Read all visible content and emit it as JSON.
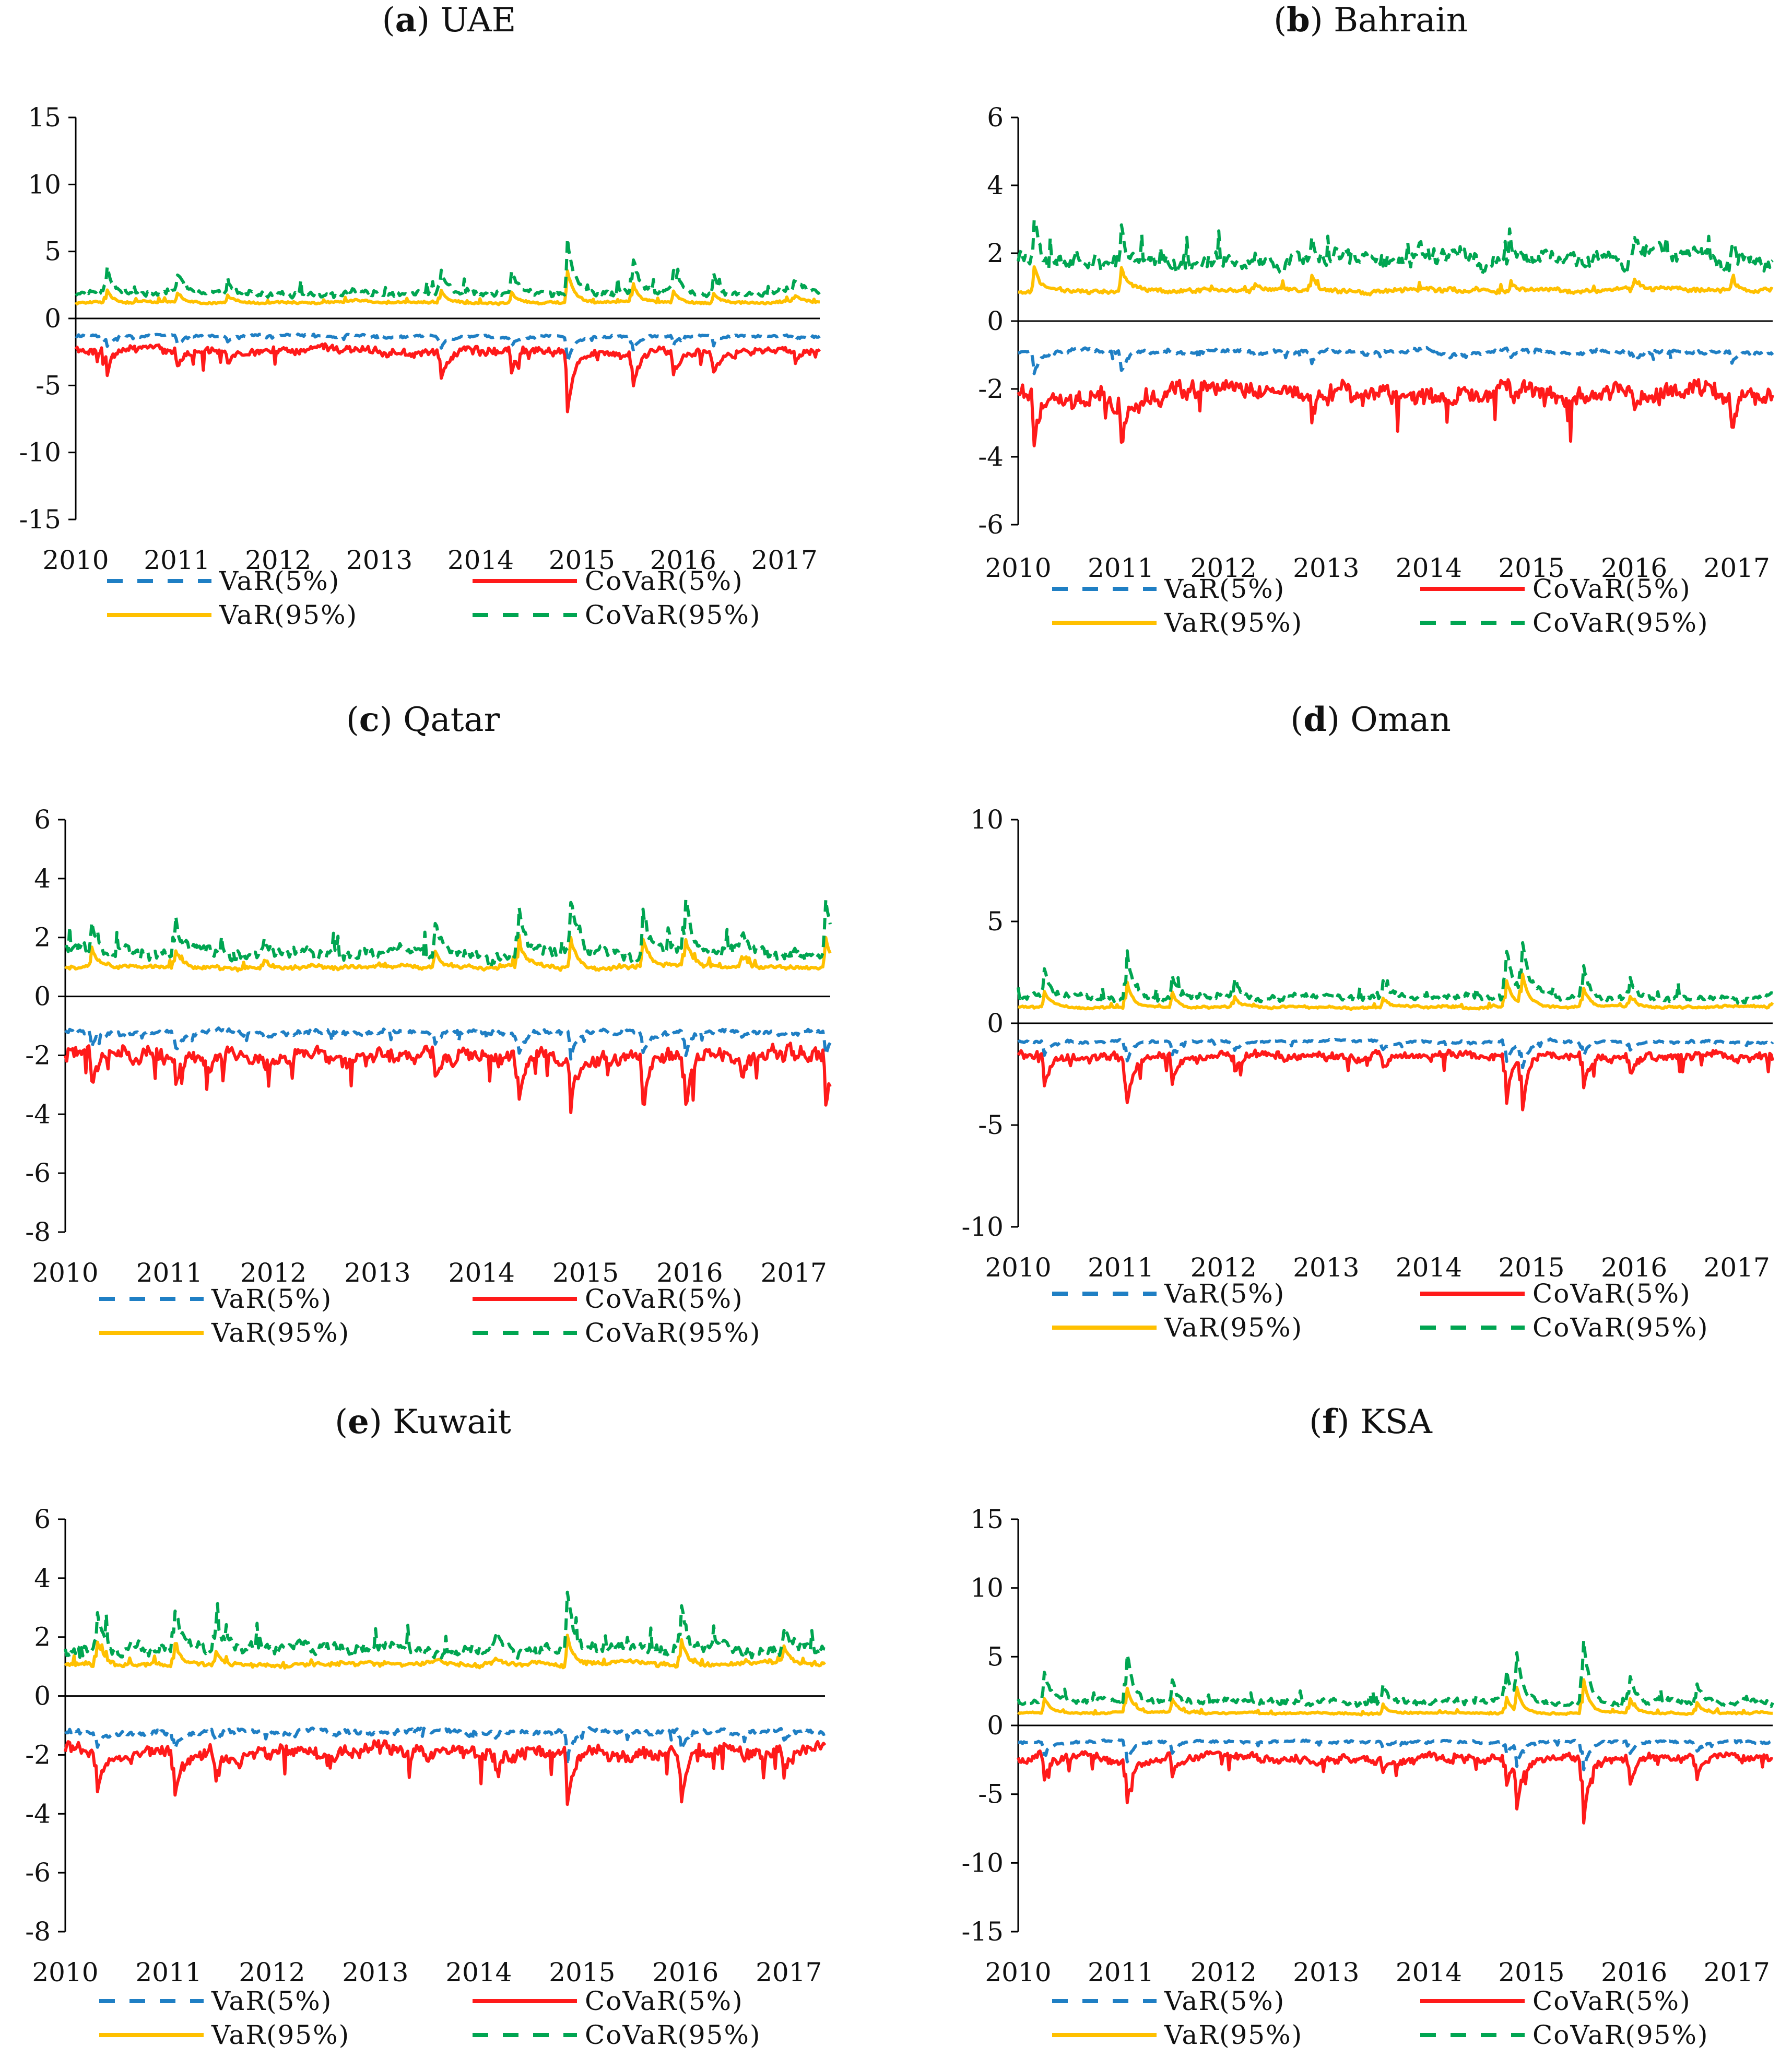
{
  "chart_data": [
    {
      "type": "line",
      "letter": "a",
      "country": "UAE",
      "ylim": [
        -15,
        15
      ],
      "yticks": [
        15,
        10,
        5,
        0,
        -5,
        -10,
        -15
      ],
      "xlim": [
        2010,
        2017.35
      ],
      "xticks": [
        2010,
        2011,
        2012,
        2013,
        2014,
        2015,
        2016,
        2017
      ],
      "baselines": {
        "var95": 1.2,
        "covar95": 1.9,
        "var5": -1.3,
        "covar5": -2.4
      },
      "spikes": [
        [
          2010.3,
          2.3
        ],
        [
          2011.0,
          1.4
        ],
        [
          2011.5,
          1.0
        ],
        [
          2013.6,
          2.0
        ],
        [
          2014.3,
          1.6
        ],
        [
          2014.85,
          4.8
        ],
        [
          2015.5,
          2.8
        ],
        [
          2015.9,
          1.6
        ],
        [
          2016.3,
          1.3
        ],
        [
          2017.1,
          0.9
        ]
      ],
      "legend": [
        {
          "key": "var5",
          "label": "VaR(5%)",
          "color": "#1f7fc4",
          "dash": true
        },
        {
          "key": "covar5",
          "label": "CoVaR(5%)",
          "color": "#ff1a1a",
          "dash": false
        },
        {
          "key": "var95",
          "label": "VaR(95%)",
          "color": "#ffc000",
          "dash": false
        },
        {
          "key": "covar95",
          "label": "CoVaR(95%)",
          "color": "#00a551",
          "dash": true
        }
      ]
    },
    {
      "type": "line",
      "letter": "b",
      "country": "Bahrain",
      "ylim": [
        -6,
        6
      ],
      "yticks": [
        6,
        4,
        2,
        0,
        -2,
        -4,
        -6
      ],
      "xlim": [
        2010,
        2017.35
      ],
      "xticks": [
        2010,
        2011,
        2012,
        2013,
        2014,
        2015,
        2016,
        2017
      ],
      "baselines": {
        "var95": 0.9,
        "covar95": 1.8,
        "var5": -0.9,
        "covar5": -2.1
      },
      "spikes": [
        [
          2010.15,
          1.5
        ],
        [
          2011.0,
          1.4
        ],
        [
          2012.3,
          0.4
        ],
        [
          2012.85,
          0.8
        ],
        [
          2014.2,
          0.3
        ],
        [
          2014.8,
          0.5
        ],
        [
          2016.0,
          0.6
        ],
        [
          2016.95,
          0.7
        ]
      ],
      "legend": [
        {
          "key": "var5",
          "label": "VaR(5%)",
          "color": "#1f7fc4",
          "dash": true
        },
        {
          "key": "covar5",
          "label": "CoVaR(5%)",
          "color": "#ff1a1a",
          "dash": false
        },
        {
          "key": "var95",
          "label": "VaR(95%)",
          "color": "#ffc000",
          "dash": false
        },
        {
          "key": "covar95",
          "label": "CoVaR(95%)",
          "color": "#00a551",
          "dash": true
        }
      ]
    },
    {
      "type": "line",
      "letter": "c",
      "country": "Qatar",
      "ylim": [
        -8,
        6
      ],
      "yticks": [
        6,
        4,
        2,
        0,
        -2,
        -4,
        -6,
        -8
      ],
      "xlim": [
        2010,
        2017.35
      ],
      "xticks": [
        2010,
        2011,
        2012,
        2013,
        2014,
        2015,
        2016,
        2017
      ],
      "baselines": {
        "var95": 1.0,
        "covar95": 1.5,
        "var5": -1.2,
        "covar5": -2.0
      },
      "spikes": [
        [
          2010.25,
          1.2
        ],
        [
          2011.05,
          1.3
        ],
        [
          2011.9,
          0.5
        ],
        [
          2013.55,
          1.0
        ],
        [
          2014.35,
          1.8
        ],
        [
          2014.85,
          2.0
        ],
        [
          2015.55,
          1.6
        ],
        [
          2015.95,
          2.1
        ],
        [
          2016.5,
          0.6
        ],
        [
          2017.3,
          2.0
        ]
      ],
      "legend": [
        {
          "key": "var5",
          "label": "VaR(5%)",
          "color": "#1f7fc4",
          "dash": true
        },
        {
          "key": "covar5",
          "label": "CoVaR(5%)",
          "color": "#ff1a1a",
          "dash": false
        },
        {
          "key": "var95",
          "label": "VaR(95%)",
          "color": "#ffc000",
          "dash": false
        },
        {
          "key": "covar95",
          "label": "CoVaR(95%)",
          "color": "#00a551",
          "dash": true
        }
      ]
    },
    {
      "type": "line",
      "letter": "d",
      "country": "Oman",
      "ylim": [
        -10,
        10
      ],
      "yticks": [
        10,
        5,
        0,
        -5,
        -10
      ],
      "xlim": [
        2010,
        2017.35
      ],
      "xticks": [
        2010,
        2011,
        2012,
        2013,
        2014,
        2015,
        2016,
        2017
      ],
      "baselines": {
        "var95": 0.8,
        "covar95": 1.3,
        "var5": -0.9,
        "covar5": -1.6
      },
      "spikes": [
        [
          2010.25,
          1.5
        ],
        [
          2011.05,
          2.7
        ],
        [
          2011.5,
          1.3
        ],
        [
          2012.1,
          1.0
        ],
        [
          2013.55,
          0.9
        ],
        [
          2014.75,
          2.6
        ],
        [
          2014.9,
          3.3
        ],
        [
          2015.5,
          1.8
        ],
        [
          2015.95,
          1.2
        ]
      ],
      "legend": [
        {
          "key": "var5",
          "label": "VaR(5%)",
          "color": "#1f7fc4",
          "dash": true
        },
        {
          "key": "covar5",
          "label": "CoVaR(5%)",
          "color": "#ff1a1a",
          "dash": false
        },
        {
          "key": "var95",
          "label": "VaR(95%)",
          "color": "#ffc000",
          "dash": false
        },
        {
          "key": "covar95",
          "label": "CoVaR(95%)",
          "color": "#00a551",
          "dash": true
        }
      ]
    },
    {
      "type": "line",
      "letter": "e",
      "country": "Kuwait",
      "ylim": [
        -8,
        6
      ],
      "yticks": [
        6,
        4,
        2,
        0,
        -2,
        -4,
        -6,
        -8
      ],
      "xlim": [
        2010,
        2017.35
      ],
      "xticks": [
        2010,
        2011,
        2012,
        2013,
        2014,
        2015,
        2016,
        2017
      ],
      "baselines": {
        "var95": 1.1,
        "covar95": 1.6,
        "var5": -1.2,
        "covar5": -1.9
      },
      "spikes": [
        [
          2010.3,
          1.6
        ],
        [
          2011.05,
          1.6
        ],
        [
          2011.45,
          1.0
        ],
        [
          2014.15,
          0.6
        ],
        [
          2014.85,
          2.1
        ],
        [
          2015.95,
          2.0
        ],
        [
          2016.95,
          0.9
        ]
      ],
      "legend": [
        {
          "key": "var5",
          "label": "VaR(5%)",
          "color": "#1f7fc4",
          "dash": true
        },
        {
          "key": "covar5",
          "label": "CoVaR(5%)",
          "color": "#ff1a1a",
          "dash": false
        },
        {
          "key": "var95",
          "label": "VaR(95%)",
          "color": "#ffc000",
          "dash": false
        },
        {
          "key": "covar95",
          "label": "CoVaR(95%)",
          "color": "#00a551",
          "dash": true
        }
      ]
    },
    {
      "type": "line",
      "letter": "f",
      "country": "KSA",
      "ylim": [
        -15,
        15
      ],
      "yticks": [
        15,
        10,
        5,
        0,
        -5,
        -10,
        -15
      ],
      "xlim": [
        2010,
        2017.35
      ],
      "xticks": [
        2010,
        2011,
        2012,
        2013,
        2014,
        2015,
        2016,
        2017
      ],
      "baselines": {
        "var95": 0.9,
        "covar95": 1.7,
        "var5": -1.2,
        "covar5": -2.4
      },
      "spikes": [
        [
          2010.25,
          2.2
        ],
        [
          2011.05,
          4.0
        ],
        [
          2011.5,
          1.8
        ],
        [
          2013.55,
          1.3
        ],
        [
          2014.75,
          2.4
        ],
        [
          2014.85,
          3.5
        ],
        [
          2015.5,
          5.2
        ],
        [
          2015.95,
          2.4
        ],
        [
          2016.6,
          1.8
        ]
      ],
      "legend": [
        {
          "key": "var5",
          "label": "VaR(5%)",
          "color": "#1f7fc4",
          "dash": true
        },
        {
          "key": "covar5",
          "label": "CoVaR(5%)",
          "color": "#ff1a1a",
          "dash": false
        },
        {
          "key": "var95",
          "label": "VaR(95%)",
          "color": "#ffc000",
          "dash": false
        },
        {
          "key": "covar95",
          "label": "CoVaR(95%)",
          "color": "#00a551",
          "dash": true
        }
      ]
    }
  ]
}
